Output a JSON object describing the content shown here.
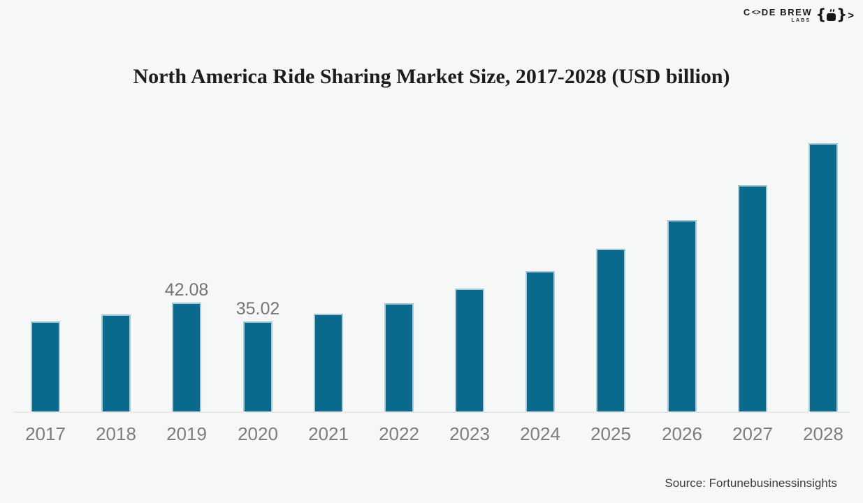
{
  "brand": {
    "name_part1": "C",
    "name_o_glyph": "<>",
    "name_part2": "DE BREW",
    "name_sub": "LABS",
    "color": "#1b1b1b"
  },
  "chart_data": {
    "type": "bar",
    "title": "North America Ride Sharing Market Size, 2017-2028 (USD billion)",
    "categories": [
      "2017",
      "2018",
      "2019",
      "2020",
      "2021",
      "2022",
      "2023",
      "2024",
      "2025",
      "2026",
      "2027",
      "2028"
    ],
    "values": [
      34.9,
      37.6,
      42.08,
      35.02,
      38.0,
      42.0,
      47.6,
      54.3,
      62.9,
      73.8,
      87.4,
      103.4
    ],
    "labeled_points": [
      {
        "category": "2019",
        "label": "42.08"
      },
      {
        "category": "2020",
        "label": "35.02"
      }
    ],
    "xlabel": "",
    "ylabel": "",
    "ylim": [
      0,
      110
    ],
    "grid": false,
    "legend": false,
    "bar_color": "#0a6a8d",
    "bar_edge_color": "#a9c8d8",
    "value_label_color": "#757575",
    "tick_label_color": "#7d7d7d",
    "axis_line_color": "#e9e9ea",
    "background_color": "#f6f7f7"
  },
  "footer": {
    "source": "Source: Fortunebusinessinsights"
  }
}
